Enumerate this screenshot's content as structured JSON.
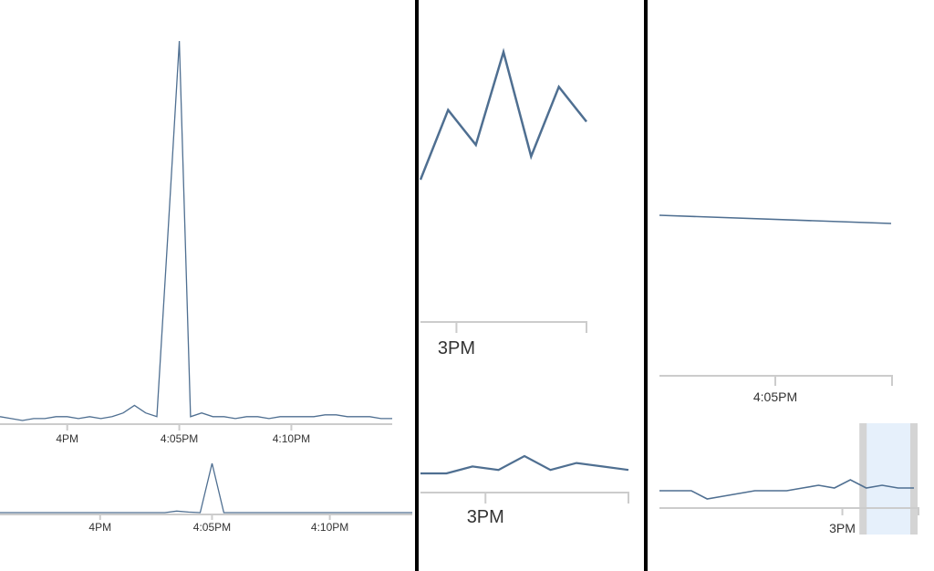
{
  "colors": {
    "line": "#4f6f91",
    "axis": "#cccccc",
    "divider": "#000000",
    "brush_fill": "#e6f0fb",
    "brush_handle": "#d4d4d4"
  },
  "chart_data": [
    {
      "type": "line",
      "xlabel": "",
      "ylabel": "",
      "xlim": [
        0,
        35
      ],
      "ylim": [
        0,
        100
      ],
      "x_ticks": [
        {
          "x": 6,
          "label": "4PM"
        },
        {
          "x": 16,
          "label": "4:05PM"
        },
        {
          "x": 26,
          "label": "4:10PM"
        }
      ],
      "series": [
        {
          "values": [
            [
              0,
              1
            ],
            [
              1,
              0.5
            ],
            [
              2,
              0
            ],
            [
              3,
              0.5
            ],
            [
              4,
              0.5
            ],
            [
              5,
              1
            ],
            [
              6,
              1
            ],
            [
              7,
              0.5
            ],
            [
              8,
              1
            ],
            [
              9,
              0.5
            ],
            [
              10,
              1
            ],
            [
              11,
              2
            ],
            [
              12,
              4
            ],
            [
              13,
              2
            ],
            [
              14,
              1
            ],
            [
              15,
              50
            ],
            [
              16,
              100
            ],
            [
              17,
              1
            ],
            [
              18,
              2
            ],
            [
              19,
              1
            ],
            [
              20,
              1
            ],
            [
              21,
              0.5
            ],
            [
              22,
              1
            ],
            [
              23,
              1
            ],
            [
              24,
              0.5
            ],
            [
              25,
              1
            ],
            [
              26,
              1
            ],
            [
              27,
              1
            ],
            [
              28,
              1
            ],
            [
              29,
              1.5
            ],
            [
              30,
              1.5
            ],
            [
              31,
              1
            ],
            [
              32,
              1
            ],
            [
              33,
              1
            ],
            [
              34,
              0.5
            ],
            [
              35,
              0.5
            ]
          ]
        }
      ]
    },
    {
      "type": "line",
      "xlabel": "",
      "ylabel": "",
      "xlim": [
        0,
        35
      ],
      "ylim": [
        0,
        100
      ],
      "x_ticks": [
        {
          "x": 8.5,
          "label": "4PM"
        },
        {
          "x": 18,
          "label": "4:05PM"
        },
        {
          "x": 28,
          "label": "4:10PM"
        }
      ],
      "series": [
        {
          "values": [
            [
              0,
              2
            ],
            [
              2,
              2
            ],
            [
              4,
              2
            ],
            [
              6,
              2
            ],
            [
              8,
              2
            ],
            [
              10,
              2
            ],
            [
              12,
              2
            ],
            [
              14,
              2
            ],
            [
              15,
              5
            ],
            [
              16,
              3
            ],
            [
              17,
              2
            ],
            [
              18,
              100
            ],
            [
              19,
              2
            ],
            [
              20,
              2
            ],
            [
              22,
              2
            ],
            [
              24,
              2
            ],
            [
              26,
              2
            ],
            [
              28,
              2
            ],
            [
              30,
              2
            ],
            [
              32,
              2
            ],
            [
              34,
              2
            ],
            [
              35,
              2
            ]
          ]
        }
      ]
    },
    {
      "type": "line",
      "xlabel": "",
      "ylabel": "",
      "xlim": [
        0,
        6
      ],
      "ylim": [
        0,
        100
      ],
      "x_ticks": [
        {
          "x": 1.3,
          "label": "3PM"
        }
      ],
      "series": [
        {
          "values": [
            [
              0,
              45
            ],
            [
              1,
              75
            ],
            [
              2,
              60
            ],
            [
              3,
              100
            ],
            [
              4,
              55
            ],
            [
              5,
              85
            ],
            [
              6,
              70
            ]
          ]
        }
      ]
    },
    {
      "type": "line",
      "xlabel": "",
      "ylabel": "",
      "xlim": [
        0,
        8
      ],
      "ylim": [
        0,
        100
      ],
      "x_ticks": [
        {
          "x": 2.5,
          "label": "3PM"
        }
      ],
      "series": [
        {
          "values": [
            [
              0,
              35
            ],
            [
              1,
              35
            ],
            [
              2,
              45
            ],
            [
              3,
              40
            ],
            [
              4,
              60
            ],
            [
              5,
              40
            ],
            [
              6,
              50
            ],
            [
              7,
              45
            ],
            [
              8,
              40
            ]
          ]
        }
      ]
    },
    {
      "type": "line",
      "xlabel": "",
      "ylabel": "",
      "xlim": [
        0,
        10
      ],
      "ylim": [
        0,
        100
      ],
      "x_ticks": [
        {
          "x": 5,
          "label": "4:05PM"
        }
      ],
      "series": [
        {
          "values": [
            [
              0,
              60
            ],
            [
              10,
              55
            ]
          ]
        }
      ]
    },
    {
      "type": "line",
      "xlabel": "",
      "ylabel": "",
      "xlim": [
        0,
        16
      ],
      "ylim": [
        0,
        100
      ],
      "x_ticks": [
        {
          "x": 11.5,
          "label": "3PM"
        }
      ],
      "series": [
        {
          "values": [
            [
              0,
              50
            ],
            [
              1,
              50
            ],
            [
              2,
              50
            ],
            [
              3,
              35
            ],
            [
              4,
              40
            ],
            [
              5,
              45
            ],
            [
              6,
              50
            ],
            [
              7,
              50
            ],
            [
              8,
              50
            ],
            [
              9,
              55
            ],
            [
              10,
              60
            ],
            [
              11,
              55
            ],
            [
              12,
              70
            ],
            [
              13,
              55
            ],
            [
              14,
              60
            ],
            [
              15,
              55
            ],
            [
              16,
              55
            ]
          ]
        }
      ],
      "brush": {
        "from": 12.8,
        "to": 16
      }
    }
  ]
}
